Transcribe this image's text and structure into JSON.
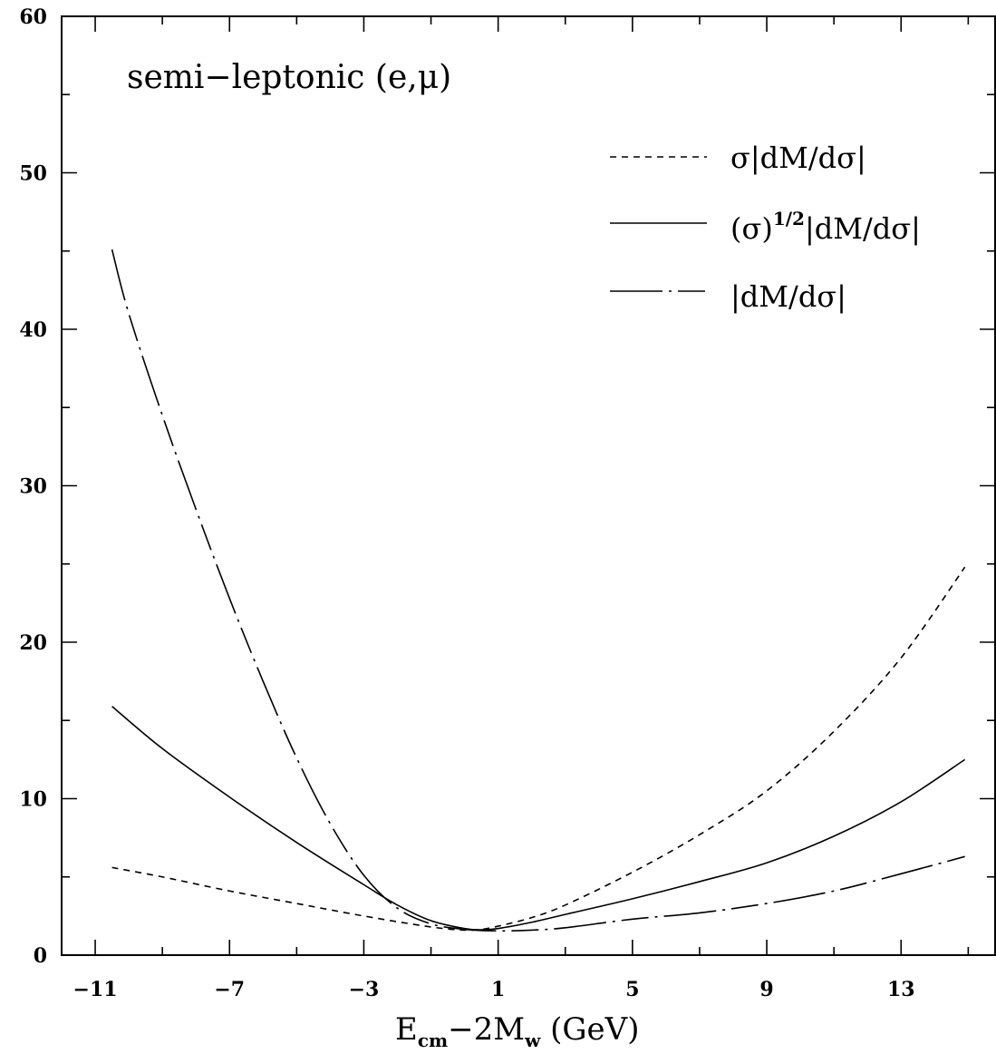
{
  "chart_data": {
    "type": "line",
    "annotation": "semi−leptonic (e,μ)",
    "xlabel": {
      "main": "E",
      "sub1": "cm",
      "mid": "−2M",
      "sub2": "w",
      "tail": " (GeV)"
    },
    "ylabel": "",
    "xlim": [
      -12,
      15.8
    ],
    "ylim": [
      0,
      60
    ],
    "xticks": [
      -11,
      -7,
      -3,
      1,
      5,
      9,
      13
    ],
    "xtick_labels": [
      "−11",
      "−7",
      "−3",
      "1",
      "5",
      "9",
      "13"
    ],
    "yticks": [
      0,
      10,
      20,
      30,
      40,
      50,
      60
    ],
    "ytick_labels": [
      "0",
      "10",
      "20",
      "30",
      "40",
      "50",
      "60"
    ],
    "x_minor_step": 2,
    "y_minor_step": 5,
    "grid": false,
    "legend_position": "top-right",
    "series": [
      {
        "key": "dashed",
        "name": "σ|dM/dσ|",
        "legend_parts": [
          "σ|dM/dσ|"
        ],
        "style": "dashed",
        "color": "#000000",
        "x": [
          -10.5,
          -9,
          -7,
          -5,
          -3,
          -1,
          0,
          0.5,
          1,
          2,
          3,
          5,
          7,
          9,
          11,
          13,
          14.9
        ],
        "y": [
          5.6,
          5.0,
          4.1,
          3.3,
          2.5,
          1.8,
          1.6,
          1.65,
          1.85,
          2.4,
          3.2,
          5.3,
          7.7,
          10.5,
          14.3,
          19.0,
          24.8
        ]
      },
      {
        "key": "solid",
        "name": "(σ)1/2|dM/dσ|",
        "legend_parts": [
          "(σ)",
          "1/2",
          "|dM/dσ|"
        ],
        "style": "solid",
        "color": "#000000",
        "x": [
          -10.5,
          -9,
          -7,
          -5,
          -3,
          -2,
          -1,
          0,
          0.5,
          1,
          2,
          3,
          5,
          7,
          9,
          11,
          13,
          14.9
        ],
        "y": [
          15.9,
          13.2,
          10.1,
          7.2,
          4.5,
          3.2,
          2.2,
          1.7,
          1.62,
          1.7,
          2.1,
          2.6,
          3.6,
          4.7,
          5.9,
          7.6,
          9.8,
          12.5
        ]
      },
      {
        "key": "dashdot",
        "name": "|dM/dσ|",
        "legend_parts": [
          "|dM/dσ|"
        ],
        "style": "dashdot",
        "color": "#000000",
        "x": [
          -10.5,
          -10,
          -9,
          -8,
          -7,
          -6,
          -5,
          -4,
          -3,
          -2,
          -1,
          0,
          1,
          2,
          3,
          5,
          7,
          9,
          11,
          13,
          14.9
        ],
        "y": [
          45.1,
          41.0,
          34.5,
          28.5,
          22.8,
          17.5,
          12.6,
          8.4,
          5.1,
          3.0,
          2.0,
          1.65,
          1.55,
          1.6,
          1.75,
          2.3,
          2.7,
          3.3,
          4.1,
          5.2,
          6.3
        ]
      }
    ]
  }
}
